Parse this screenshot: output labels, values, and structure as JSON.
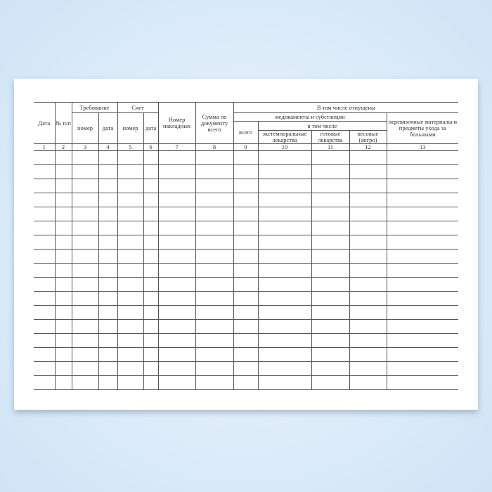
{
  "form": {
    "headers": {
      "date": "Дата",
      "num": "№ п/п",
      "requirement": "Требование",
      "invoice": "Счет",
      "number": "номер",
      "date_lc": "дата",
      "waybill_number": "Номер накладных",
      "doc_sum": "Сумма по документу всего",
      "released": "В том числе отпущены",
      "medicines": "медикаменты и субстанции",
      "total": "всего",
      "including": "в том числе",
      "extemporal": "экстемпоральные лекарства",
      "ready": "готовые лекарства",
      "weighted": "весовые (ангро)",
      "dressings": "перевязочные материалы и предметы ухода за больными"
    },
    "column_numbers": [
      "1",
      "2",
      "3",
      "4",
      "5",
      "6",
      "7",
      "8",
      "9",
      "10",
      "11",
      "12",
      "13"
    ],
    "empty_rows": 17
  }
}
